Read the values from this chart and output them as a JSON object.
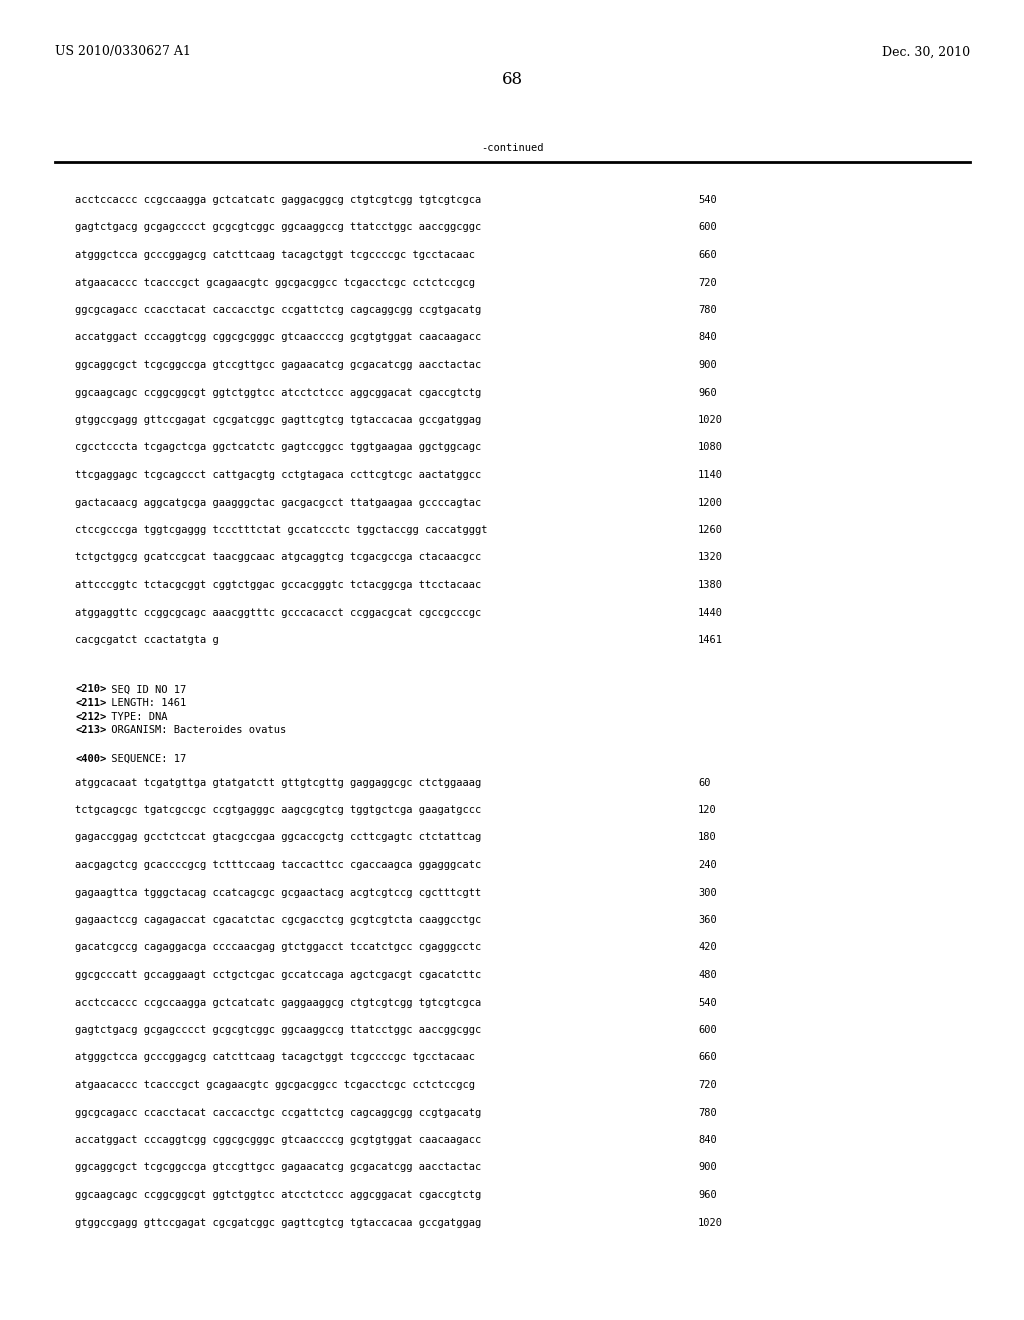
{
  "header_left": "US 2010/0330627 A1",
  "header_right": "Dec. 30, 2010",
  "page_number": "68",
  "continued_label": "-continued",
  "background_color": "#ffffff",
  "text_color": "#000000",
  "font_size_header": 9.0,
  "font_size_body": 7.5,
  "font_size_page": 12,
  "sequence_lines_top": [
    [
      "acctccaccc ccgccaagga gctcatcatc gaggacggcg ctgtcgtcgg tgtcgtcgca",
      "540"
    ],
    [
      "gagtctgacg gcgagcccct gcgcgtcggc ggcaaggccg ttatcctggc aaccggcggc",
      "600"
    ],
    [
      "atgggctcca gcccggagcg catcttcaag tacagctggt tcgccccgc tgcctacaac",
      "660"
    ],
    [
      "atgaacaccc tcacccgct gcagaacgtc ggcgacggcc tcgacctcgc cctctccgcg",
      "720"
    ],
    [
      "ggcgcagacc ccacctacat caccacctgc ccgattctcg cagcaggcgg ccgtgacatg",
      "780"
    ],
    [
      "accatggact cccaggtcgg cggcgcgggc gtcaaccccg gcgtgtggat caacaagacc",
      "840"
    ],
    [
      "ggcaggcgct tcgcggccga gtccgttgcc gagaacatcg gcgacatcgg aacctactac",
      "900"
    ],
    [
      "ggcaagcagc ccggcggcgt ggtctggtcc atcctctccc aggcggacat cgaccgtctg",
      "960"
    ],
    [
      "gtggccgagg gttccgagat cgcgatcggc gagttcgtcg tgtaccacaa gccgatggag",
      "1020"
    ],
    [
      "cgcctcccta tcgagctcga ggctcatctc gagtccggcc tggtgaagaa ggctggcagc",
      "1080"
    ],
    [
      "ttcgaggagc tcgcagccct cattgacgtg cctgtagaca ccttcgtcgc aactatggcc",
      "1140"
    ],
    [
      "gactacaacg aggcatgcga gaagggctac gacgacgcct ttatgaagaa gccccagtac",
      "1200"
    ],
    [
      "ctccgcccga tggtcgaggg tccctttctat gccatccctc tggctaccgg caccatgggt",
      "1260"
    ],
    [
      "tctgctggcg gcatccgcat taacggcaac atgcaggtcg tcgacgccga ctacaacgcc",
      "1320"
    ],
    [
      "attcccggtc tctacgcggt cggtctggac gccacgggtc tctacggcga ttcctacaac",
      "1380"
    ],
    [
      "atggaggttc ccggcgcagc aaacggtttc gcccacacct ccggacgcat cgccgcccgc",
      "1440"
    ],
    [
      "cacgcgatct ccactatgta g",
      "1461"
    ]
  ],
  "metadata_lines": [
    [
      "<210>",
      " SEQ ID NO 17"
    ],
    [
      "<211>",
      " LENGTH: 1461"
    ],
    [
      "<212>",
      " TYPE: DNA"
    ],
    [
      "<213>",
      " ORGANISM: Bacteroides ovatus"
    ]
  ],
  "sequence_label": [
    "<400>",
    " SEQUENCE: 17"
  ],
  "sequence_lines_bottom": [
    [
      "atggcacaat tcgatgttga gtatgatctt gttgtcgttg gaggaggcgc ctctggaaag",
      "60"
    ],
    [
      "tctgcagcgc tgatcgccgc ccgtgagggc aagcgcgtcg tggtgctcga gaagatgccc",
      "120"
    ],
    [
      "gagaccggag gcctctccat gtacgccgaa ggcaccgctg ccttcgagtc ctctattcag",
      "180"
    ],
    [
      "aacgagctcg gcaccccgcg tctttccaag taccacttcc cgaccaagca ggagggcatc",
      "240"
    ],
    [
      "gagaagttca tgggctacag ccatcagcgc gcgaactacg acgtcgtccg cgctttcgtt",
      "300"
    ],
    [
      "gagaactccg cagagaccat cgacatctac cgcgacctcg gcgtcgtcta caaggcctgc",
      "360"
    ],
    [
      "gacatcgccg cagaggacga ccccaacgag gtctggacct tccatctgcc cgagggcctc",
      "420"
    ],
    [
      "ggcgcccatt gccaggaagt cctgctcgac gccatccaga agctcgacgt cgacatcttc",
      "480"
    ],
    [
      "acctccaccc ccgccaagga gctcatcatc gaggaaggcg ctgtcgtcgg tgtcgtcgca",
      "540"
    ],
    [
      "gagtctgacg gcgagcccct gcgcgtcggc ggcaaggccg ttatcctggc aaccggcggc",
      "600"
    ],
    [
      "atgggctcca gcccggagcg catcttcaag tacagctggt tcgccccgc tgcctacaac",
      "660"
    ],
    [
      "atgaacaccc tcacccgct gcagaacgtc ggcgacggcc tcgacctcgc cctctccgcg",
      "720"
    ],
    [
      "ggcgcagacc ccacctacat caccacctgc ccgattctcg cagcaggcgg ccgtgacatg",
      "780"
    ],
    [
      "accatggact cccaggtcgg cggcgcgggc gtcaaccccg gcgtgtggat caacaagacc",
      "840"
    ],
    [
      "ggcaggcgct tcgcggccga gtccgttgcc gagaacatcg gcgacatcgg aacctactac",
      "900"
    ],
    [
      "ggcaagcagc ccggcggcgt ggtctggtcc atcctctccc aggcggacat cgaccgtctg",
      "960"
    ],
    [
      "gtggccgagg gttccgagat cgcgatcggc gagttcgtcg tgtaccacaa gccgatggag",
      "1020"
    ]
  ]
}
